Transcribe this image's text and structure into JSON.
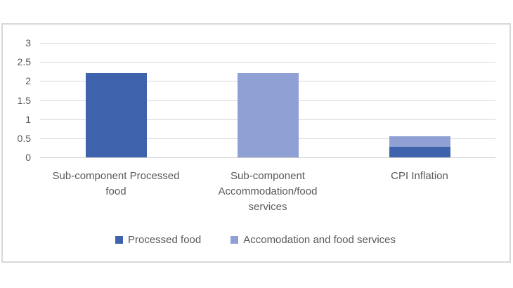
{
  "chart_data": {
    "type": "bar",
    "subtype": "stacked-column",
    "title": "",
    "xlabel": "",
    "ylabel": "",
    "categories": [
      "Sub-component Processed food",
      "Sub-component Accommodation/food services",
      "CPI Inflation"
    ],
    "series": [
      {
        "name": "Processed food",
        "color": "#3e63ac",
        "values": [
          2.2,
          0,
          0.28
        ]
      },
      {
        "name": "Accomodation and food services",
        "color": "#8fa0d4",
        "values": [
          0,
          2.2,
          0.27
        ]
      }
    ],
    "ylim": [
      0,
      3
    ],
    "ytick_labels": [
      "0",
      "0.5",
      "1",
      "1.5",
      "2",
      "2.5",
      "3"
    ],
    "grid": true,
    "legend_position": "bottom",
    "colors": {
      "text": "#595959",
      "gridline": "#d9d9d9",
      "frame_border": "#d8d8d8",
      "background": "#ffffff"
    }
  }
}
